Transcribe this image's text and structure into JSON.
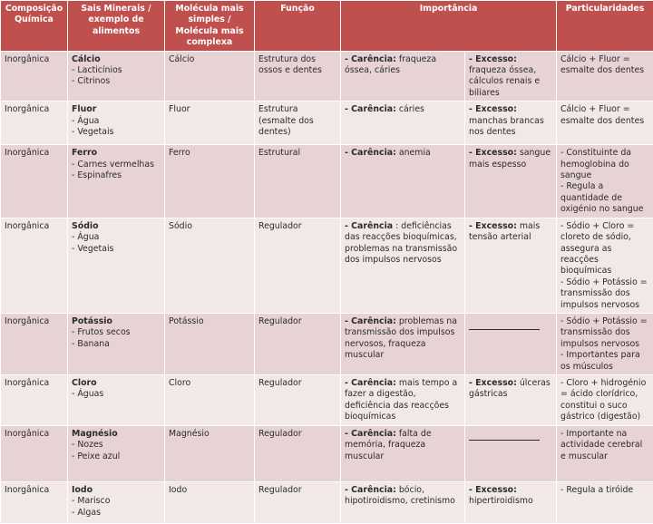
{
  "headers": {
    "composicao": "Composição Química",
    "sais": "Sais Minerais / exemplo de alimentos",
    "molecula": "Molécula mais simples / Molécula mais complexa",
    "funcao": "Função",
    "importancia": "Importância",
    "particularidades": "Particularidades"
  },
  "rows": [
    {
      "composicao": "Inorgânica",
      "sal": "Cálcio",
      "alimentos": [
        "- Lacticínios",
        "- Citrinos"
      ],
      "molecula": "Cálcio",
      "funcao": "Estrutura dos ossos e dentes",
      "carencia_label": "- Carência:",
      "carencia_text": " fraqueza óssea, cáries",
      "excesso_label": "- Excesso:",
      "excesso_text": " fraqueza óssea, cálculos renais e biliares",
      "particularidades": [
        "Cálcio + Fluor = esmalte dos dentes"
      ]
    },
    {
      "composicao": "Inorgânica",
      "sal": "Fluor",
      "alimentos": [
        "- Água",
        "- Vegetais"
      ],
      "molecula": "Fluor",
      "funcao": "Estrutura (esmalte dos dentes)",
      "carencia_label": "- Carência:",
      "carencia_text": " cáries",
      "excesso_label": "- Excesso:",
      "excesso_text": " manchas brancas nos dentes",
      "particularidades": [
        "Cálcio + Fluor = esmalte dos dentes"
      ]
    },
    {
      "composicao": "Inorgânica",
      "sal": "Ferro",
      "alimentos": [
        "- Carnes vermelhas",
        "- Espinafres"
      ],
      "molecula": "Ferro",
      "funcao": "Estrutural",
      "carencia_label": "- Carência:",
      "carencia_text": " anemia",
      "excesso_label": "- Excesso:",
      "excesso_text": " sangue mais espesso",
      "particularidades": [
        "- Constituinte da hemoglobina do sangue",
        "- Regula a quantidade de oxigénio no sangue"
      ]
    },
    {
      "composicao": "Inorgânica",
      "sal": "Sódio",
      "alimentos": [
        "- Água",
        "- Vegetais"
      ],
      "molecula": "Sódio",
      "funcao": "Regulador",
      "carencia_label": "- Carência",
      "carencia_text": " : deficiências das reacções bioquímicas, problemas na transmissão dos impulsos nervosos",
      "excesso_label": "- Excesso:",
      "excesso_text": "  mais tensão arterial",
      "particularidades": [
        "- Sódio + Cloro = cloreto de sódio, assegura as reacções bioquímicas",
        "- Sódio + Potássio = transmissão dos impulsos nervosos"
      ]
    },
    {
      "composicao": "Inorgânica",
      "sal": "Potássio",
      "alimentos": [
        "- Frutos secos",
        "- Banana"
      ],
      "molecula": "Potássio",
      "funcao": "Regulador",
      "carencia_label": "- Carência:",
      "carencia_text": " problemas na transmissão dos impulsos nervosos, fraqueza muscular",
      "excesso_label": "",
      "excesso_text": "",
      "particularidades": [
        "- Sódio + Potássio = transmissão dos impulsos nervosos",
        "- Importantes para os músculos"
      ]
    },
    {
      "composicao": "Inorgânica",
      "sal": "Cloro",
      "alimentos": [
        "- Águas"
      ],
      "molecula": "Cloro",
      "funcao": "Regulador",
      "carencia_label": "- Carência:",
      "carencia_text": " mais tempo a fazer a digestão, deficiência das reacções bioquímicas",
      "excesso_label": "- Excesso:",
      "excesso_text": " úlceras gástricas",
      "particularidades": [
        "- Cloro + hidrogénio = ácido clorídrico, constitui o suco gástrico (digestão)"
      ]
    },
    {
      "composicao": "Inorgânica",
      "sal": "Magnésio",
      "alimentos": [
        "- Nozes",
        "- Peixe azul"
      ],
      "molecula": "Magnésio",
      "funcao": "Regulador",
      "carencia_label": "- Carência:",
      "carencia_text": " falta de memória, fraqueza muscular",
      "excesso_label": "",
      "excesso_text": "",
      "particularidades": [
        "- Importante na actividade cerebral e muscular"
      ]
    },
    {
      "composicao": "Inorgânica",
      "sal": "Iodo",
      "alimentos": [
        "- Marisco",
        "- Algas"
      ],
      "molecula": "Iodo",
      "funcao": "Regulador",
      "carencia_label": "- Carência:",
      "carencia_text": " bócio, hipotiroidismo, cretinismo",
      "excesso_label": "- Excesso:",
      "excesso_text": " hipertiroidismo",
      "particularidades": [
        "- Regula a tiróide"
      ]
    }
  ]
}
